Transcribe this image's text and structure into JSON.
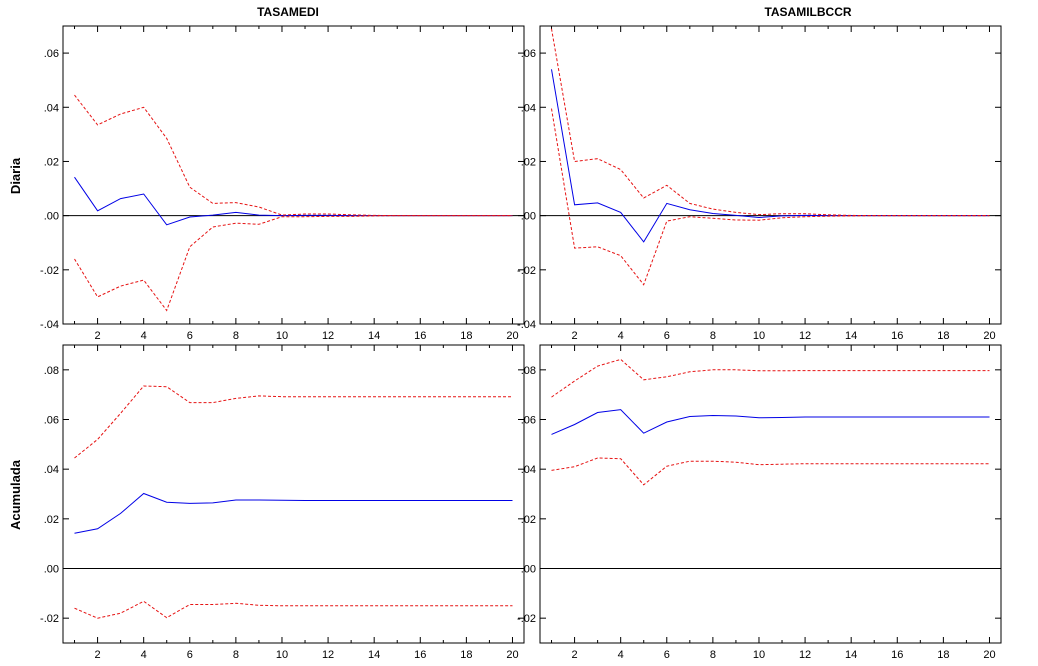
{
  "figure": {
    "column_titles": [
      "TASAMEDI",
      "TASAMILBCCR"
    ],
    "row_titles": [
      "Diaria",
      "Acumulada"
    ],
    "colors": {
      "center": "#0000e6",
      "band": "#e61414",
      "zero": "#000000"
    }
  },
  "chart_data": [
    {
      "type": "line",
      "row": 0,
      "col": 0,
      "xlim": [
        0.5,
        20.5
      ],
      "ylim": [
        -0.04,
        0.07
      ],
      "xticks": [
        2,
        4,
        6,
        8,
        10,
        12,
        14,
        16,
        18,
        20
      ],
      "xtick_labels": [
        "2",
        "4",
        "6",
        "8",
        "10",
        "12",
        "14",
        "16",
        "18",
        "20"
      ],
      "yticks": [
        -0.04,
        -0.02,
        0.0,
        0.02,
        0.04,
        0.06
      ],
      "ytick_labels": [
        "-.04",
        "-.02",
        ".00",
        ".02",
        ".04",
        ".06"
      ],
      "x": [
        1,
        2,
        3,
        4,
        5,
        6,
        7,
        8,
        9,
        10,
        11,
        12,
        13,
        14,
        15,
        16,
        17,
        18,
        19,
        20
      ],
      "series": [
        {
          "style": "center",
          "values": [
            0.0142,
            0.0018,
            0.0063,
            0.008,
            -0.0034,
            -0.0005,
            0.0002,
            0.0012,
            0.0002,
            0.0,
            0.0001,
            0.0001,
            0.0,
            0.0,
            0.0,
            0.0,
            0.0,
            0.0,
            0.0,
            0.0
          ]
        },
        {
          "style": "band",
          "values": [
            0.0445,
            0.0335,
            0.0375,
            0.04,
            0.0285,
            0.0105,
            0.0045,
            0.0048,
            0.0032,
            0.0002,
            0.0006,
            0.0006,
            0.0003,
            0.0001,
            0.0,
            0.0,
            0.0,
            0.0,
            0.0,
            0.0
          ]
        },
        {
          "style": "band",
          "values": [
            -0.016,
            -0.03,
            -0.026,
            -0.0238,
            -0.035,
            -0.0115,
            -0.0042,
            -0.0028,
            -0.0032,
            -0.0004,
            -0.0004,
            -0.0003,
            -0.0003,
            -0.0001,
            0.0,
            0.0,
            0.0,
            0.0,
            0.0,
            0.0
          ]
        }
      ]
    },
    {
      "type": "line",
      "row": 0,
      "col": 1,
      "xlim": [
        0.5,
        20.5
      ],
      "ylim": [
        -0.04,
        0.07
      ],
      "xticks": [
        2,
        4,
        6,
        8,
        10,
        12,
        14,
        16,
        18,
        20
      ],
      "xtick_labels": [
        "2",
        "4",
        "6",
        "8",
        "10",
        "12",
        "14",
        "16",
        "18",
        "20"
      ],
      "yticks": [
        -0.04,
        -0.02,
        0.0,
        0.02,
        0.04,
        0.06
      ],
      "ytick_labels": [
        "-.04",
        "-.02",
        ".00",
        ".02",
        ".04",
        ".06"
      ],
      "x": [
        1,
        2,
        3,
        4,
        5,
        6,
        7,
        8,
        9,
        10,
        11,
        12,
        13,
        14,
        15,
        16,
        17,
        18,
        19,
        20
      ],
      "series": [
        {
          "style": "center",
          "values": [
            0.054,
            0.004,
            0.0047,
            0.0012,
            -0.0097,
            0.0045,
            0.0022,
            0.0008,
            0.0001,
            -0.0007,
            -0.0001,
            0.0001,
            0.0,
            0.0,
            0.0,
            0.0,
            0.0,
            0.0,
            0.0,
            0.0
          ]
        },
        {
          "style": "band",
          "values": [
            0.069,
            0.02,
            0.021,
            0.017,
            0.0065,
            0.0112,
            0.0045,
            0.0024,
            0.0012,
            0.0004,
            0.0007,
            0.0007,
            0.0003,
            0.0001,
            0.0,
            0.0,
            0.0,
            0.0,
            0.0,
            0.0
          ]
        },
        {
          "style": "band",
          "values": [
            0.0395,
            -0.012,
            -0.0115,
            -0.0148,
            -0.0255,
            -0.002,
            -0.0004,
            -0.001,
            -0.0016,
            -0.0017,
            -0.0008,
            -0.0004,
            -0.0002,
            -0.0001,
            0.0,
            0.0,
            0.0,
            0.0,
            0.0,
            0.0
          ]
        }
      ]
    },
    {
      "type": "line",
      "row": 1,
      "col": 0,
      "xlim": [
        0.5,
        20.5
      ],
      "ylim": [
        -0.03,
        0.09
      ],
      "xticks": [
        2,
        4,
        6,
        8,
        10,
        12,
        14,
        16,
        18,
        20
      ],
      "xtick_labels": [
        "2",
        "4",
        "6",
        "8",
        "10",
        "12",
        "14",
        "16",
        "18",
        "20"
      ],
      "yticks": [
        -0.02,
        0.0,
        0.02,
        0.04,
        0.06,
        0.08
      ],
      "ytick_labels": [
        "-.02",
        ".00",
        ".02",
        ".04",
        ".06",
        ".08"
      ],
      "x": [
        1,
        2,
        3,
        4,
        5,
        6,
        7,
        8,
        9,
        10,
        11,
        12,
        13,
        14,
        15,
        16,
        17,
        18,
        19,
        20
      ],
      "series": [
        {
          "style": "center",
          "values": [
            0.0142,
            0.016,
            0.0222,
            0.0302,
            0.0267,
            0.0262,
            0.0264,
            0.0276,
            0.0276,
            0.0275,
            0.0274,
            0.0274,
            0.0274,
            0.0274,
            0.0274,
            0.0274,
            0.0274,
            0.0274,
            0.0274,
            0.0274
          ]
        },
        {
          "style": "band",
          "values": [
            0.0445,
            0.052,
            0.0625,
            0.0735,
            0.0732,
            0.0668,
            0.0668,
            0.0685,
            0.0695,
            0.0692,
            0.0692,
            0.0692,
            0.0692,
            0.0692,
            0.0692,
            0.0692,
            0.0692,
            0.0692,
            0.0692,
            0.0692
          ]
        },
        {
          "style": "band",
          "values": [
            -0.016,
            -0.02,
            -0.018,
            -0.0132,
            -0.0198,
            -0.0145,
            -0.0145,
            -0.014,
            -0.0148,
            -0.015,
            -0.015,
            -0.015,
            -0.015,
            -0.015,
            -0.015,
            -0.015,
            -0.015,
            -0.015,
            -0.015,
            -0.015
          ]
        }
      ]
    },
    {
      "type": "line",
      "row": 1,
      "col": 1,
      "xlim": [
        0.5,
        20.5
      ],
      "ylim": [
        -0.03,
        0.09
      ],
      "xticks": [
        2,
        4,
        6,
        8,
        10,
        12,
        14,
        16,
        18,
        20
      ],
      "xtick_labels": [
        "2",
        "4",
        "6",
        "8",
        "10",
        "12",
        "14",
        "16",
        "18",
        "20"
      ],
      "yticks": [
        -0.02,
        0.0,
        0.02,
        0.04,
        0.06,
        0.08
      ],
      "ytick_labels": [
        "-.02",
        ".00",
        ".02",
        ".04",
        ".06",
        ".08"
      ],
      "x": [
        1,
        2,
        3,
        4,
        5,
        6,
        7,
        8,
        9,
        10,
        11,
        12,
        13,
        14,
        15,
        16,
        17,
        18,
        19,
        20
      ],
      "series": [
        {
          "style": "center",
          "values": [
            0.054,
            0.058,
            0.0628,
            0.064,
            0.0545,
            0.059,
            0.0612,
            0.0616,
            0.0614,
            0.0607,
            0.0608,
            0.061,
            0.061,
            0.061,
            0.061,
            0.061,
            0.061,
            0.061,
            0.061,
            0.061
          ]
        },
        {
          "style": "band",
          "values": [
            0.069,
            0.0755,
            0.0815,
            0.0842,
            0.076,
            0.0772,
            0.0792,
            0.08,
            0.08,
            0.0796,
            0.0796,
            0.0797,
            0.0797,
            0.0797,
            0.0797,
            0.0797,
            0.0797,
            0.0797,
            0.0797,
            0.0797
          ]
        },
        {
          "style": "band",
          "values": [
            0.0395,
            0.041,
            0.0445,
            0.0442,
            0.0337,
            0.0412,
            0.0432,
            0.0432,
            0.0428,
            0.0418,
            0.042,
            0.0422,
            0.0422,
            0.0422,
            0.0422,
            0.0422,
            0.0422,
            0.0422,
            0.0422,
            0.0422
          ]
        }
      ]
    }
  ]
}
